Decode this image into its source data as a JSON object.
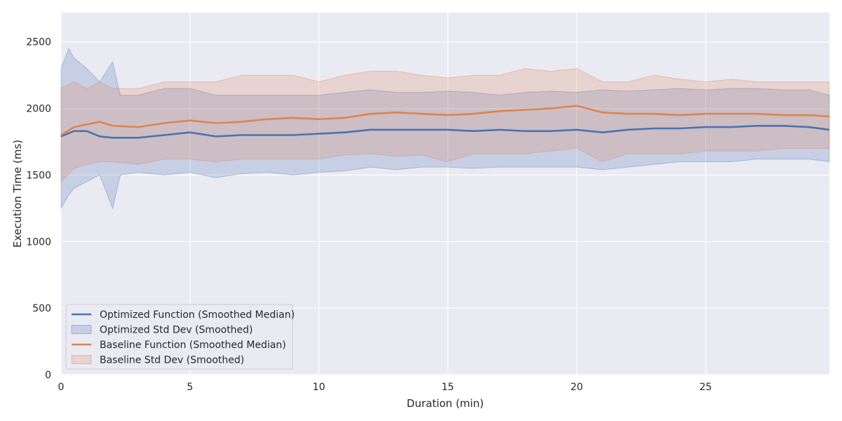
{
  "chart_data": {
    "type": "line",
    "title": "",
    "xlabel": "Duration (min)",
    "ylabel": "Execution Time (ms)",
    "xlim": [
      0,
      29.8
    ],
    "ylim": [
      0,
      2720
    ],
    "xticks": [
      0,
      5,
      10,
      15,
      20,
      25
    ],
    "yticks": [
      0,
      500,
      1000,
      1500,
      2000,
      2500
    ],
    "grid": true,
    "legend_position": "lower-left",
    "background": "#eaeaf2",
    "series": [
      {
        "name": "Optimized Function (Smoothed Median)",
        "kind": "line",
        "color": "#4c72b0",
        "x": [
          0,
          0.5,
          1,
          1.5,
          2,
          3,
          4,
          5,
          6,
          7,
          8,
          9,
          10,
          11,
          12,
          13,
          14,
          15,
          16,
          17,
          18,
          19,
          20,
          21,
          22,
          23,
          24,
          25,
          26,
          27,
          28,
          29,
          29.8
        ],
        "y": [
          1790,
          1830,
          1830,
          1790,
          1780,
          1780,
          1800,
          1820,
          1790,
          1800,
          1800,
          1800,
          1810,
          1820,
          1840,
          1840,
          1840,
          1840,
          1830,
          1840,
          1830,
          1830,
          1840,
          1820,
          1840,
          1850,
          1850,
          1860,
          1860,
          1870,
          1870,
          1860,
          1840
        ]
      },
      {
        "name": "Optimized Std Dev (Smoothed)",
        "kind": "band",
        "color": "#4c72b0",
        "x": [
          0,
          0.3,
          0.5,
          1,
          1.5,
          2,
          2.3,
          3,
          4,
          5,
          6,
          7,
          8,
          9,
          10,
          11,
          12,
          13,
          14,
          15,
          16,
          17,
          18,
          19,
          20,
          21,
          22,
          23,
          24,
          25,
          26,
          27,
          28,
          29,
          29.8
        ],
        "upper": [
          2300,
          2450,
          2380,
          2300,
          2200,
          2350,
          2100,
          2100,
          2150,
          2150,
          2100,
          2100,
          2100,
          2100,
          2100,
          2120,
          2140,
          2120,
          2120,
          2130,
          2120,
          2100,
          2120,
          2130,
          2120,
          2140,
          2130,
          2140,
          2150,
          2140,
          2150,
          2150,
          2140,
          2140,
          2100
        ],
        "lower": [
          1250,
          1350,
          1400,
          1450,
          1500,
          1250,
          1500,
          1520,
          1500,
          1520,
          1480,
          1510,
          1520,
          1500,
          1520,
          1530,
          1560,
          1540,
          1560,
          1560,
          1550,
          1560,
          1560,
          1560,
          1560,
          1540,
          1560,
          1580,
          1600,
          1600,
          1600,
          1620,
          1620,
          1620,
          1600
        ]
      },
      {
        "name": "Baseline Function (Smoothed Median)",
        "kind": "line",
        "color": "#dd8452",
        "x": [
          0,
          0.5,
          1,
          1.5,
          2,
          3,
          4,
          5,
          6,
          7,
          8,
          9,
          10,
          11,
          12,
          13,
          14,
          15,
          16,
          17,
          18,
          19,
          20,
          21,
          22,
          23,
          24,
          25,
          26,
          27,
          28,
          29,
          29.8
        ],
        "y": [
          1800,
          1860,
          1880,
          1900,
          1870,
          1860,
          1890,
          1910,
          1890,
          1900,
          1920,
          1930,
          1920,
          1930,
          1960,
          1970,
          1960,
          1950,
          1960,
          1980,
          1990,
          2000,
          2020,
          1970,
          1960,
          1960,
          1950,
          1960,
          1960,
          1960,
          1950,
          1950,
          1940
        ]
      },
      {
        "name": "Baseline Std Dev (Smoothed)",
        "kind": "band",
        "color": "#dd8452",
        "x": [
          0,
          0.5,
          1,
          1.5,
          2,
          3,
          4,
          5,
          6,
          7,
          8,
          9,
          10,
          11,
          12,
          13,
          14,
          15,
          16,
          17,
          18,
          19,
          20,
          21,
          22,
          23,
          24,
          25,
          26,
          27,
          28,
          29,
          29.8
        ],
        "upper": [
          2150,
          2200,
          2150,
          2200,
          2150,
          2150,
          2200,
          2200,
          2200,
          2250,
          2250,
          2250,
          2200,
          2250,
          2280,
          2280,
          2250,
          2230,
          2250,
          2250,
          2300,
          2280,
          2300,
          2200,
          2200,
          2250,
          2220,
          2200,
          2220,
          2200,
          2200,
          2200,
          2200
        ],
        "lower": [
          1450,
          1550,
          1580,
          1600,
          1600,
          1580,
          1620,
          1620,
          1600,
          1620,
          1620,
          1620,
          1620,
          1650,
          1660,
          1640,
          1650,
          1600,
          1660,
          1660,
          1660,
          1680,
          1700,
          1600,
          1660,
          1660,
          1660,
          1680,
          1680,
          1680,
          1700,
          1700,
          1700
        ]
      }
    ]
  }
}
